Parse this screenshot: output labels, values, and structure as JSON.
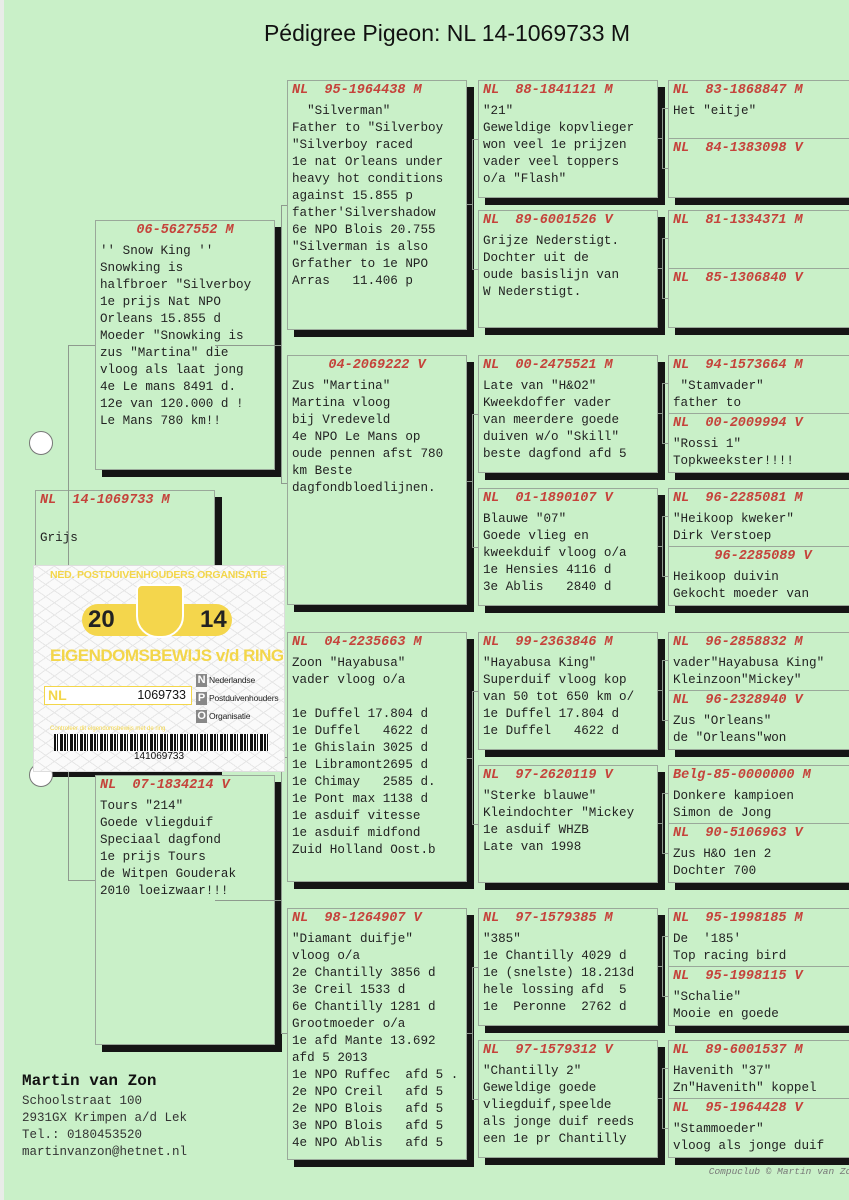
{
  "title": "Pédigree Pigeon: NL  14-1069733 M",
  "subject": {
    "ring": "NL  14-1069733 M",
    "text": "\nGrijs",
    "center": false
  },
  "generation1": [
    {
      "ring": "06-5627552 M",
      "center": true,
      "text": "'' Snow King ''\nSnowking is\nhalfbroer \"Silverboy\n1e prijs Nat NPO\nOrleans 15.855 d\nMoeder \"Snowking is\nzus \"Martina\" die\nvloog als laat jong\n4e Le mans 8491 d.\n12e van 120.000 d !\nLe Mans 780 km!!"
    },
    {
      "ring": "NL  07-1834214 V",
      "center": false,
      "text": "Tours \"214\"\nGoede vliegduif\nSpeciaal dagfond\n1e prijs Tours\nde Witpen Gouderak\n2010 loeizwaar!!!"
    }
  ],
  "generation2": [
    {
      "ring": "NL  95-1964438 M",
      "center": false,
      "text": "  \"Silverman\"\nFather to \"Silverboy\n\"Silverboy raced\n1e nat Orleans under\nheavy hot conditions\nagainst 15.855 p\nfather'Silvershadow\n6e NPO Blois 20.755\n\"Silverman is also\nGrfather to 1e NPO\nArras   11.406 p"
    },
    {
      "ring": "04-2069222 V",
      "center": true,
      "text": "Zus \"Martina\"\nMartina vloog\nbij Vredeveld\n4e NPO Le Mans op\noude pennen afst 780\nkm Beste\ndagfondbloedlijnen."
    },
    {
      "ring": "NL  04-2235663 M",
      "center": false,
      "text": "Zoon \"Hayabusa\"\nvader vloog o/a\n\n1e Duffel 17.804 d\n1e Duffel   4622 d\n1e Ghislain 3025 d\n1e Libramont2695 d\n1e Chimay   2585 d.\n1e Pont max 1138 d\n1e asduif vitesse\n1e asduif midfond\nZuid Holland Oost.b"
    },
    {
      "ring": "NL  98-1264907 V",
      "center": false,
      "text": "\"Diamant duifje\"\nvloog o/a\n2e Chantilly 3856 d\n3e Creil 1533 d\n6e Chantilly 1281 d\nGrootmoeder o/a\n1e afd Mante 13.692\nafd 5 2013\n1e NPO Ruffec  afd 5 .\n2e NPO Creil   afd 5\n2e NPO Blois   afd 5\n3e NPO Blois   afd 5\n4e NPO Ablis   afd 5"
    }
  ],
  "generation3": [
    {
      "ring": "NL  88-1841121 M",
      "center": false,
      "text": "\"21\"\nGeweldige kopvlieger\nwon veel 1e prijzen\nvader veel toppers\no/a \"Flash\""
    },
    {
      "ring": "NL  89-6001526 V",
      "center": false,
      "text": "Grijze Nederstigt.\nDochter uit de\noude basislijn van\nW Nederstigt."
    },
    {
      "ring": "NL  00-2475521 M",
      "center": false,
      "text": "Late van \"H&O2\"\nKweekdoffer vader\nvan meerdere goede\nduiven w/o \"Skill\"\nbeste dagfond afd 5"
    },
    {
      "ring": "NL  01-1890107 V",
      "center": false,
      "text": "Blauwe \"07\"\nGoede vlieg en\nkweekduif vloog o/a\n1e Hensies 4116 d\n3e Ablis   2840 d"
    },
    {
      "ring": "NL  99-2363846 M",
      "center": false,
      "text": "\"Hayabusa King\"\nSuperduif vloog kop\nvan 50 tot 650 km o/\n1e Duffel 17.804 d\n1e Duffel   4622 d"
    },
    {
      "ring": "NL  97-2620119 V",
      "center": false,
      "text": "\"Sterke blauwe\"\nKleindochter \"Mickey\n1e asduif WHZB\nLate van 1998"
    },
    {
      "ring": "NL  97-1579385 M",
      "center": false,
      "text": "\"385\"\n1e Chantilly 4029 d\n1e (snelste) 18.213d\nhele lossing afd  5\n1e  Peronne  2762 d"
    },
    {
      "ring": "NL  97-1579312 V",
      "center": false,
      "text": "\"Chantilly 2\"\nGeweldige goede\nvliegduif,speelde\nals jonge duif reeds\neen 1e pr Chantilly"
    }
  ],
  "generation4": [
    {
      "ring": "NL  83-1868847 M",
      "center": false,
      "text": "Het \"eitje\""
    },
    {
      "ring": "NL  84-1383098 V",
      "center": false,
      "text": ""
    },
    {
      "ring": "NL  81-1334371 M",
      "center": false,
      "text": ""
    },
    {
      "ring": "NL  85-1306840 V",
      "center": false,
      "text": ""
    },
    {
      "ring": "NL  94-1573664 M",
      "center": false,
      "text": " \"Stamvader\"\nfather to"
    },
    {
      "ring": "NL  00-2009994 V",
      "center": false,
      "text": "\"Rossi 1\"\nTopkweekster!!!!"
    },
    {
      "ring": "NL  96-2285081 M",
      "center": false,
      "text": "\"Heikoop kweker\"\nDirk Verstoep"
    },
    {
      "ring": "96-2285089 V",
      "center": true,
      "text": "Heikoop duivin\nGekocht moeder van"
    },
    {
      "ring": "NL  96-2858832 M",
      "center": false,
      "text": "vader\"Hayabusa King\"\nKleinzoon\"Mickey\""
    },
    {
      "ring": "NL  96-2328940 V",
      "center": false,
      "text": "Zus \"Orleans\"\nde \"Orleans\"won"
    },
    {
      "ring": "Belg-85-0000000 M",
      "center": false,
      "text": "Donkere kampioen\nSimon de Jong"
    },
    {
      "ring": "NL  90-5106963 V",
      "center": false,
      "text": "Zus H&O 1en 2\nDochter 700"
    },
    {
      "ring": "NL  95-1998185 M",
      "center": false,
      "text": "De  '185'\nTop racing bird"
    },
    {
      "ring": "NL  95-1998115 V",
      "center": false,
      "text": "\"Schalie\"\nMooie en goede"
    },
    {
      "ring": "NL  89-6001537 M",
      "center": false,
      "text": "Havenith \"37\"\nZn\"Havenith\" koppel"
    },
    {
      "ring": "NL  95-1964428 V",
      "center": false,
      "text": "\"Stammoeder\"\nvloog als jonge duif"
    }
  ],
  "ring_card": {
    "organisation": "NED. POSTDUIVENHOUDERS ORGANISATIE",
    "year_left": "20",
    "year_right": "14",
    "heading": "EIGENDOMSBEWIJS v/d RING",
    "country": "NL",
    "ring_number": "1069733",
    "npo_lines": [
      "Nederlandse",
      "Postduivenhouders",
      "Organisatie"
    ],
    "npo_letters": [
      "N",
      "P",
      "O"
    ],
    "fine_print": "Controleer dit eigendomsbewijs met de ring",
    "barcode_number": "141069733",
    "accent_color": "#f3d64a"
  },
  "breeder": {
    "name": "Martin van Zon",
    "address": "Schoolstraat 100",
    "city": "2931GX  Krimpen a/d Lek",
    "phone": "Tel.: 0180453520",
    "email": "martinvanzon@hetnet.nl"
  },
  "footer": "Compuclub © Martin van Zon",
  "colors": {
    "background": "#c9f0c8",
    "ring_text": "#c5433b",
    "shadow": "#151515"
  }
}
